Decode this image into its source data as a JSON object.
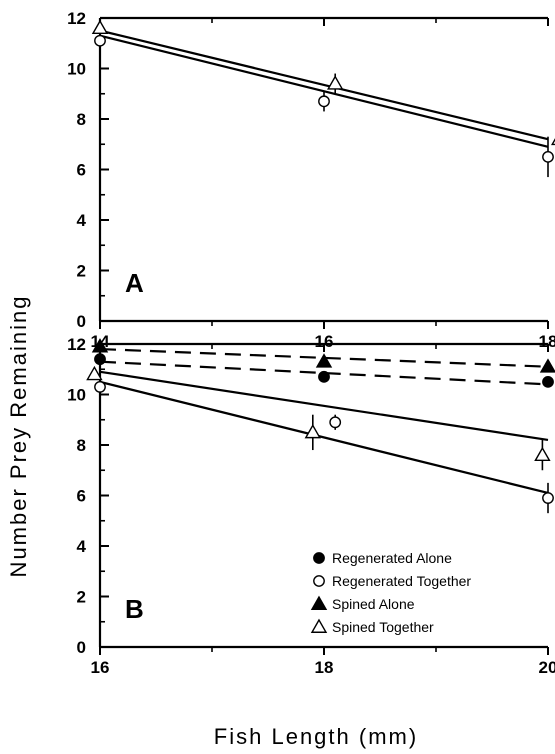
{
  "ylabel": "Number Prey Remaining",
  "xlabel": "Fish Length (mm)",
  "legend": [
    {
      "label": "Regenerated Alone",
      "marker": "filled-circle"
    },
    {
      "label": "Regenerated Together",
      "marker": "open-circle"
    },
    {
      "label": "Spined Alone",
      "marker": "filled-triangle"
    },
    {
      "label": "Spined Together",
      "marker": "open-triangle"
    }
  ],
  "chart_data": [
    {
      "panel": "A",
      "type": "scatter",
      "xlim": [
        14,
        18
      ],
      "ylim": [
        0,
        12
      ],
      "xticks": [
        "14",
        "16",
        "18"
      ],
      "yticks": [
        "0",
        "2",
        "4",
        "6",
        "8",
        "10",
        "12"
      ],
      "series": [
        {
          "name": "Regenerated Together",
          "marker": "open-circle",
          "x": [
            14,
            16,
            18
          ],
          "y": [
            11.1,
            8.7,
            6.5
          ],
          "err": [
            0,
            0.4,
            0.8
          ],
          "fit": {
            "x": [
              14,
              18
            ],
            "y": [
              11.3,
              6.9
            ],
            "style": "solid"
          }
        },
        {
          "name": "Spined Together",
          "marker": "open-triangle",
          "x": [
            14,
            16.1,
            18.1
          ],
          "y": [
            11.6,
            9.4,
            7.2
          ],
          "err": [
            0,
            0.4,
            0.6
          ],
          "fit": {
            "x": [
              14,
              18
            ],
            "y": [
              11.5,
              7.2
            ],
            "style": "solid"
          }
        }
      ]
    },
    {
      "panel": "B",
      "type": "scatter",
      "xlim": [
        16,
        20
      ],
      "ylim": [
        0,
        12
      ],
      "xticks": [
        "16",
        "18",
        "20"
      ],
      "yticks": [
        "0",
        "2",
        "4",
        "6",
        "8",
        "10",
        "12"
      ],
      "series": [
        {
          "name": "Regenerated Alone",
          "marker": "filled-circle",
          "x": [
            16,
            18,
            20
          ],
          "y": [
            11.4,
            10.7,
            10.5
          ],
          "err": [
            0,
            0,
            0
          ],
          "fit": {
            "x": [
              16,
              20
            ],
            "y": [
              11.3,
              10.4
            ],
            "style": "dashed"
          }
        },
        {
          "name": "Regenerated Together",
          "marker": "open-circle",
          "x": [
            16,
            18.1,
            20
          ],
          "y": [
            10.3,
            8.9,
            5.9
          ],
          "err": [
            0,
            0.3,
            0.6
          ],
          "fit": {
            "x": [
              16,
              20
            ],
            "y": [
              10.5,
              6.1
            ],
            "style": "solid"
          }
        },
        {
          "name": "Spined Alone",
          "marker": "filled-triangle",
          "x": [
            16,
            18,
            20
          ],
          "y": [
            11.9,
            11.3,
            11.1
          ],
          "err": [
            0,
            0,
            0
          ],
          "fit": {
            "x": [
              16,
              20
            ],
            "y": [
              11.8,
              11.1
            ],
            "style": "dashed"
          }
        },
        {
          "name": "Spined Together",
          "marker": "open-triangle",
          "x": [
            15.95,
            17.9,
            19.95
          ],
          "y": [
            10.8,
            8.5,
            7.6
          ],
          "err": [
            0,
            0.7,
            0.6
          ],
          "fit": {
            "x": [
              16,
              20
            ],
            "y": [
              10.9,
              8.2
            ],
            "style": "solid"
          }
        }
      ]
    }
  ]
}
